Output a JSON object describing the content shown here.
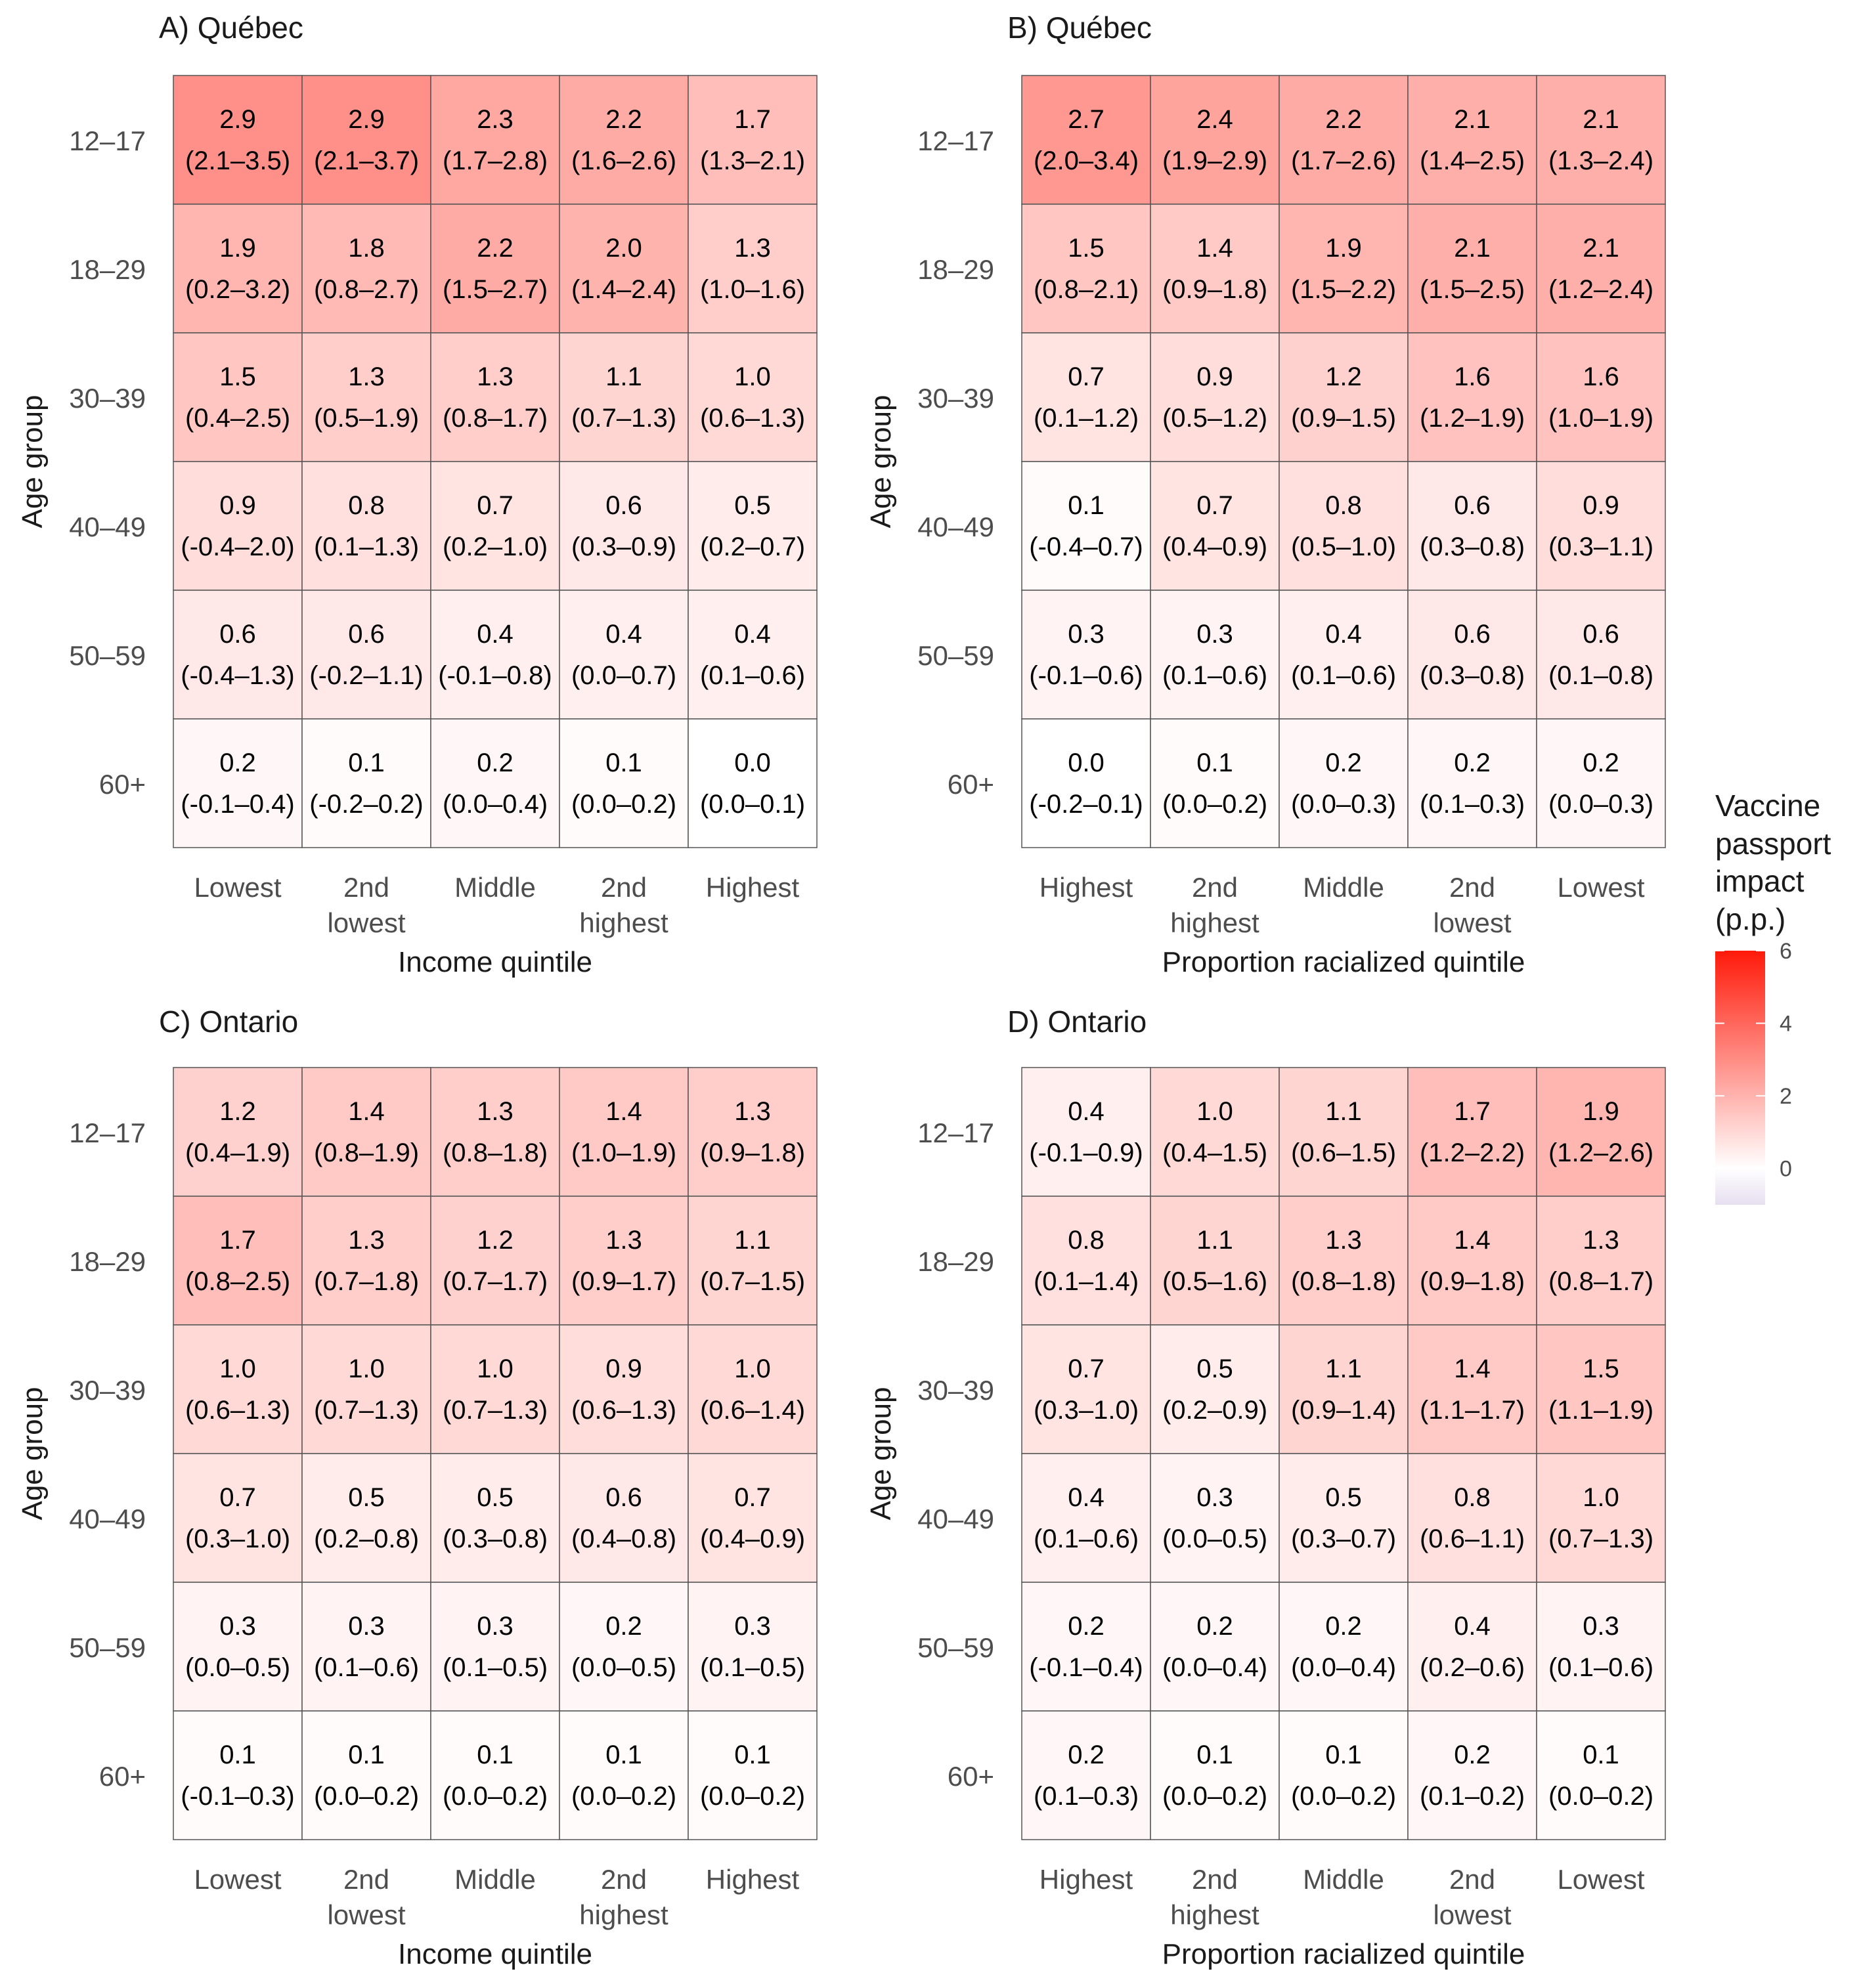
{
  "legend": {
    "title_lines": [
      "Vaccine",
      "passport",
      "impact",
      "(p.p.)"
    ],
    "ticks": [
      6,
      4,
      2,
      0
    ],
    "range": [
      -1,
      6
    ],
    "colors": {
      "negative": "#e6dff0",
      "zero": "#ffffff",
      "high": "#ff1a0a"
    }
  },
  "chart_data": [
    {
      "type": "heatmap",
      "title": "A) Québec",
      "xlabel": "Income quintile",
      "ylabel": "Age group",
      "x_categories": [
        [
          "Lowest"
        ],
        [
          "2nd",
          "lowest"
        ],
        [
          "Middle"
        ],
        [
          "2nd",
          "highest"
        ],
        [
          "Highest"
        ]
      ],
      "y_categories": [
        "12–17",
        "18–29",
        "30–39",
        "40–49",
        "50–59",
        "60+"
      ],
      "values": [
        [
          2.9,
          2.9,
          2.3,
          2.2,
          1.7
        ],
        [
          1.9,
          1.8,
          2.2,
          2.0,
          1.3
        ],
        [
          1.5,
          1.3,
          1.3,
          1.1,
          1.0
        ],
        [
          0.9,
          0.8,
          0.7,
          0.6,
          0.5
        ],
        [
          0.6,
          0.6,
          0.4,
          0.4,
          0.4
        ],
        [
          0.2,
          0.1,
          0.2,
          0.1,
          0.0
        ]
      ],
      "intervals": [
        [
          "(2.1–3.5)",
          "(2.1–3.7)",
          "(1.7–2.8)",
          "(1.6–2.6)",
          "(1.3–2.1)"
        ],
        [
          "(0.2–3.2)",
          "(0.8–2.7)",
          "(1.5–2.7)",
          "(1.4–2.4)",
          "(1.0–1.6)"
        ],
        [
          "(0.4–2.5)",
          "(0.5–1.9)",
          "(0.8–1.7)",
          "(0.7–1.3)",
          "(0.6–1.3)"
        ],
        [
          "(-0.4–2.0)",
          "(0.1–1.3)",
          "(0.2–1.0)",
          "(0.3–0.9)",
          "(0.2–0.7)"
        ],
        [
          "(-0.4–1.3)",
          "(-0.2–1.1)",
          "(-0.1–0.8)",
          "(0.0–0.7)",
          "(0.1–0.6)"
        ],
        [
          "(-0.1–0.4)",
          "(-0.2–0.2)",
          "(0.0–0.4)",
          "(0.0–0.2)",
          "(0.0–0.1)"
        ]
      ]
    },
    {
      "type": "heatmap",
      "title": "B) Québec",
      "xlabel": "Proportion racialized quintile",
      "ylabel": "Age group",
      "x_categories": [
        [
          "Highest"
        ],
        [
          "2nd",
          "highest"
        ],
        [
          "Middle"
        ],
        [
          "2nd",
          "lowest"
        ],
        [
          "Lowest"
        ]
      ],
      "y_categories": [
        "12–17",
        "18–29",
        "30–39",
        "40–49",
        "50–59",
        "60+"
      ],
      "values": [
        [
          2.7,
          2.4,
          2.2,
          2.1,
          2.1
        ],
        [
          1.5,
          1.4,
          1.9,
          2.1,
          2.1
        ],
        [
          0.7,
          0.9,
          1.2,
          1.6,
          1.6
        ],
        [
          0.1,
          0.7,
          0.8,
          0.6,
          0.9
        ],
        [
          0.3,
          0.3,
          0.4,
          0.6,
          0.6
        ],
        [
          0.0,
          0.1,
          0.2,
          0.2,
          0.2
        ]
      ],
      "intervals": [
        [
          "(2.0–3.4)",
          "(1.9–2.9)",
          "(1.7–2.6)",
          "(1.4–2.5)",
          "(1.3–2.4)"
        ],
        [
          "(0.8–2.1)",
          "(0.9–1.8)",
          "(1.5–2.2)",
          "(1.5–2.5)",
          "(1.2–2.4)"
        ],
        [
          "(0.1–1.2)",
          "(0.5–1.2)",
          "(0.9–1.5)",
          "(1.2–1.9)",
          "(1.0–1.9)"
        ],
        [
          "(-0.4–0.7)",
          "(0.4–0.9)",
          "(0.5–1.0)",
          "(0.3–0.8)",
          "(0.3–1.1)"
        ],
        [
          "(-0.1–0.6)",
          "(0.1–0.6)",
          "(0.1–0.6)",
          "(0.3–0.8)",
          "(0.1–0.8)"
        ],
        [
          "(-0.2–0.1)",
          "(0.0–0.2)",
          "(0.0–0.3)",
          "(0.1–0.3)",
          "(0.0–0.3)"
        ]
      ]
    },
    {
      "type": "heatmap",
      "title": "C) Ontario",
      "xlabel": "Income quintile",
      "ylabel": "Age group",
      "x_categories": [
        [
          "Lowest"
        ],
        [
          "2nd",
          "lowest"
        ],
        [
          "Middle"
        ],
        [
          "2nd",
          "highest"
        ],
        [
          "Highest"
        ]
      ],
      "y_categories": [
        "12–17",
        "18–29",
        "30–39",
        "40–49",
        "50–59",
        "60+"
      ],
      "values": [
        [
          1.2,
          1.4,
          1.3,
          1.4,
          1.3
        ],
        [
          1.7,
          1.3,
          1.2,
          1.3,
          1.1
        ],
        [
          1.0,
          1.0,
          1.0,
          0.9,
          1.0
        ],
        [
          0.7,
          0.5,
          0.5,
          0.6,
          0.7
        ],
        [
          0.3,
          0.3,
          0.3,
          0.2,
          0.3
        ],
        [
          0.1,
          0.1,
          0.1,
          0.1,
          0.1
        ]
      ],
      "intervals": [
        [
          "(0.4–1.9)",
          "(0.8–1.9)",
          "(0.8–1.8)",
          "(1.0–1.9)",
          "(0.9–1.8)"
        ],
        [
          "(0.8–2.5)",
          "(0.7–1.8)",
          "(0.7–1.7)",
          "(0.9–1.7)",
          "(0.7–1.5)"
        ],
        [
          "(0.6–1.3)",
          "(0.7–1.3)",
          "(0.7–1.3)",
          "(0.6–1.3)",
          "(0.6–1.4)"
        ],
        [
          "(0.3–1.0)",
          "(0.2–0.8)",
          "(0.3–0.8)",
          "(0.4–0.8)",
          "(0.4–0.9)"
        ],
        [
          "(0.0–0.5)",
          "(0.1–0.6)",
          "(0.1–0.5)",
          "(0.0–0.5)",
          "(0.1–0.5)"
        ],
        [
          "(-0.1–0.3)",
          "(0.0–0.2)",
          "(0.0–0.2)",
          "(0.0–0.2)",
          "(0.0–0.2)"
        ]
      ]
    },
    {
      "type": "heatmap",
      "title": "D) Ontario",
      "xlabel": "Proportion racialized quintile",
      "ylabel": "Age group",
      "x_categories": [
        [
          "Highest"
        ],
        [
          "2nd",
          "highest"
        ],
        [
          "Middle"
        ],
        [
          "2nd",
          "lowest"
        ],
        [
          "Lowest"
        ]
      ],
      "y_categories": [
        "12–17",
        "18–29",
        "30–39",
        "40–49",
        "50–59",
        "60+"
      ],
      "values": [
        [
          0.4,
          1.0,
          1.1,
          1.7,
          1.9
        ],
        [
          0.8,
          1.1,
          1.3,
          1.4,
          1.3
        ],
        [
          0.7,
          0.5,
          1.1,
          1.4,
          1.5
        ],
        [
          0.4,
          0.3,
          0.5,
          0.8,
          1.0
        ],
        [
          0.2,
          0.2,
          0.2,
          0.4,
          0.3
        ],
        [
          0.2,
          0.1,
          0.1,
          0.2,
          0.1
        ]
      ],
      "intervals": [
        [
          "(-0.1–0.9)",
          "(0.4–1.5)",
          "(0.6–1.5)",
          "(1.2–2.2)",
          "(1.2–2.6)"
        ],
        [
          "(0.1–1.4)",
          "(0.5–1.6)",
          "(0.8–1.8)",
          "(0.9–1.8)",
          "(0.8–1.7)"
        ],
        [
          "(0.3–1.0)",
          "(0.2–0.9)",
          "(0.9–1.4)",
          "(1.1–1.7)",
          "(1.1–1.9)"
        ],
        [
          "(0.1–0.6)",
          "(0.0–0.5)",
          "(0.3–0.7)",
          "(0.6–1.1)",
          "(0.7–1.3)"
        ],
        [
          "(-0.1–0.4)",
          "(0.0–0.4)",
          "(0.0–0.4)",
          "(0.2–0.6)",
          "(0.1–0.6)"
        ],
        [
          "(0.1–0.3)",
          "(0.0–0.2)",
          "(0.0–0.2)",
          "(0.1–0.2)",
          "(0.0–0.2)"
        ]
      ]
    }
  ]
}
